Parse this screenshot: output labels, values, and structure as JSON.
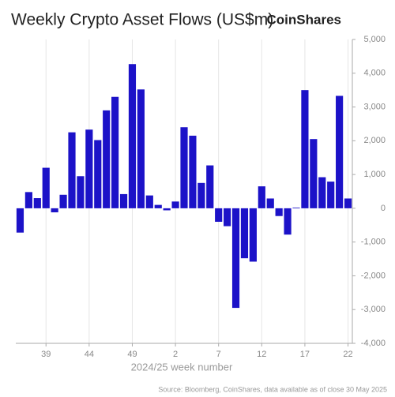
{
  "chart_data": {
    "type": "bar",
    "title": "Weekly Crypto Asset Flows (US$m)",
    "brand": "CoinShares",
    "x_label": "2024/25 week number",
    "source": "Source: Bloomberg, CoinShares, data available as of close 30 May 2025",
    "categories": [
      null,
      null,
      null,
      "39",
      null,
      null,
      null,
      null,
      "44",
      null,
      null,
      null,
      null,
      "49",
      null,
      null,
      null,
      null,
      "2",
      null,
      null,
      null,
      null,
      "7",
      null,
      null,
      null,
      null,
      "12",
      null,
      null,
      null,
      null,
      "17",
      null,
      null,
      null,
      null,
      "22"
    ],
    "values": [
      -720,
      480,
      300,
      1200,
      -120,
      400,
      2250,
      950,
      2330,
      2020,
      2900,
      3300,
      420,
      4270,
      3520,
      380,
      100,
      -60,
      200,
      2400,
      2150,
      750,
      1270,
      -400,
      -530,
      -2950,
      -1480,
      -1580,
      650,
      290,
      -230,
      -780,
      20,
      3500,
      2050,
      920,
      790,
      3330,
      290
    ],
    "color": "#1c12c8",
    "ylim": [
      -4000,
      5000
    ],
    "yticks": [
      {
        "value": -4000,
        "label": "-4,000"
      },
      {
        "value": -3000,
        "label": "-3,000"
      },
      {
        "value": -2000,
        "label": "-2,000"
      },
      {
        "value": -1000,
        "label": "-1,000"
      },
      0,
      {
        "value": 1000,
        "label": "1,000"
      },
      {
        "value": 2000,
        "label": "2,000"
      },
      {
        "value": 3000,
        "label": "3,000"
      },
      {
        "value": 4000,
        "label": "4,000"
      },
      {
        "value": 5000,
        "label": "5,000"
      }
    ],
    "y_axis_side": "right"
  }
}
